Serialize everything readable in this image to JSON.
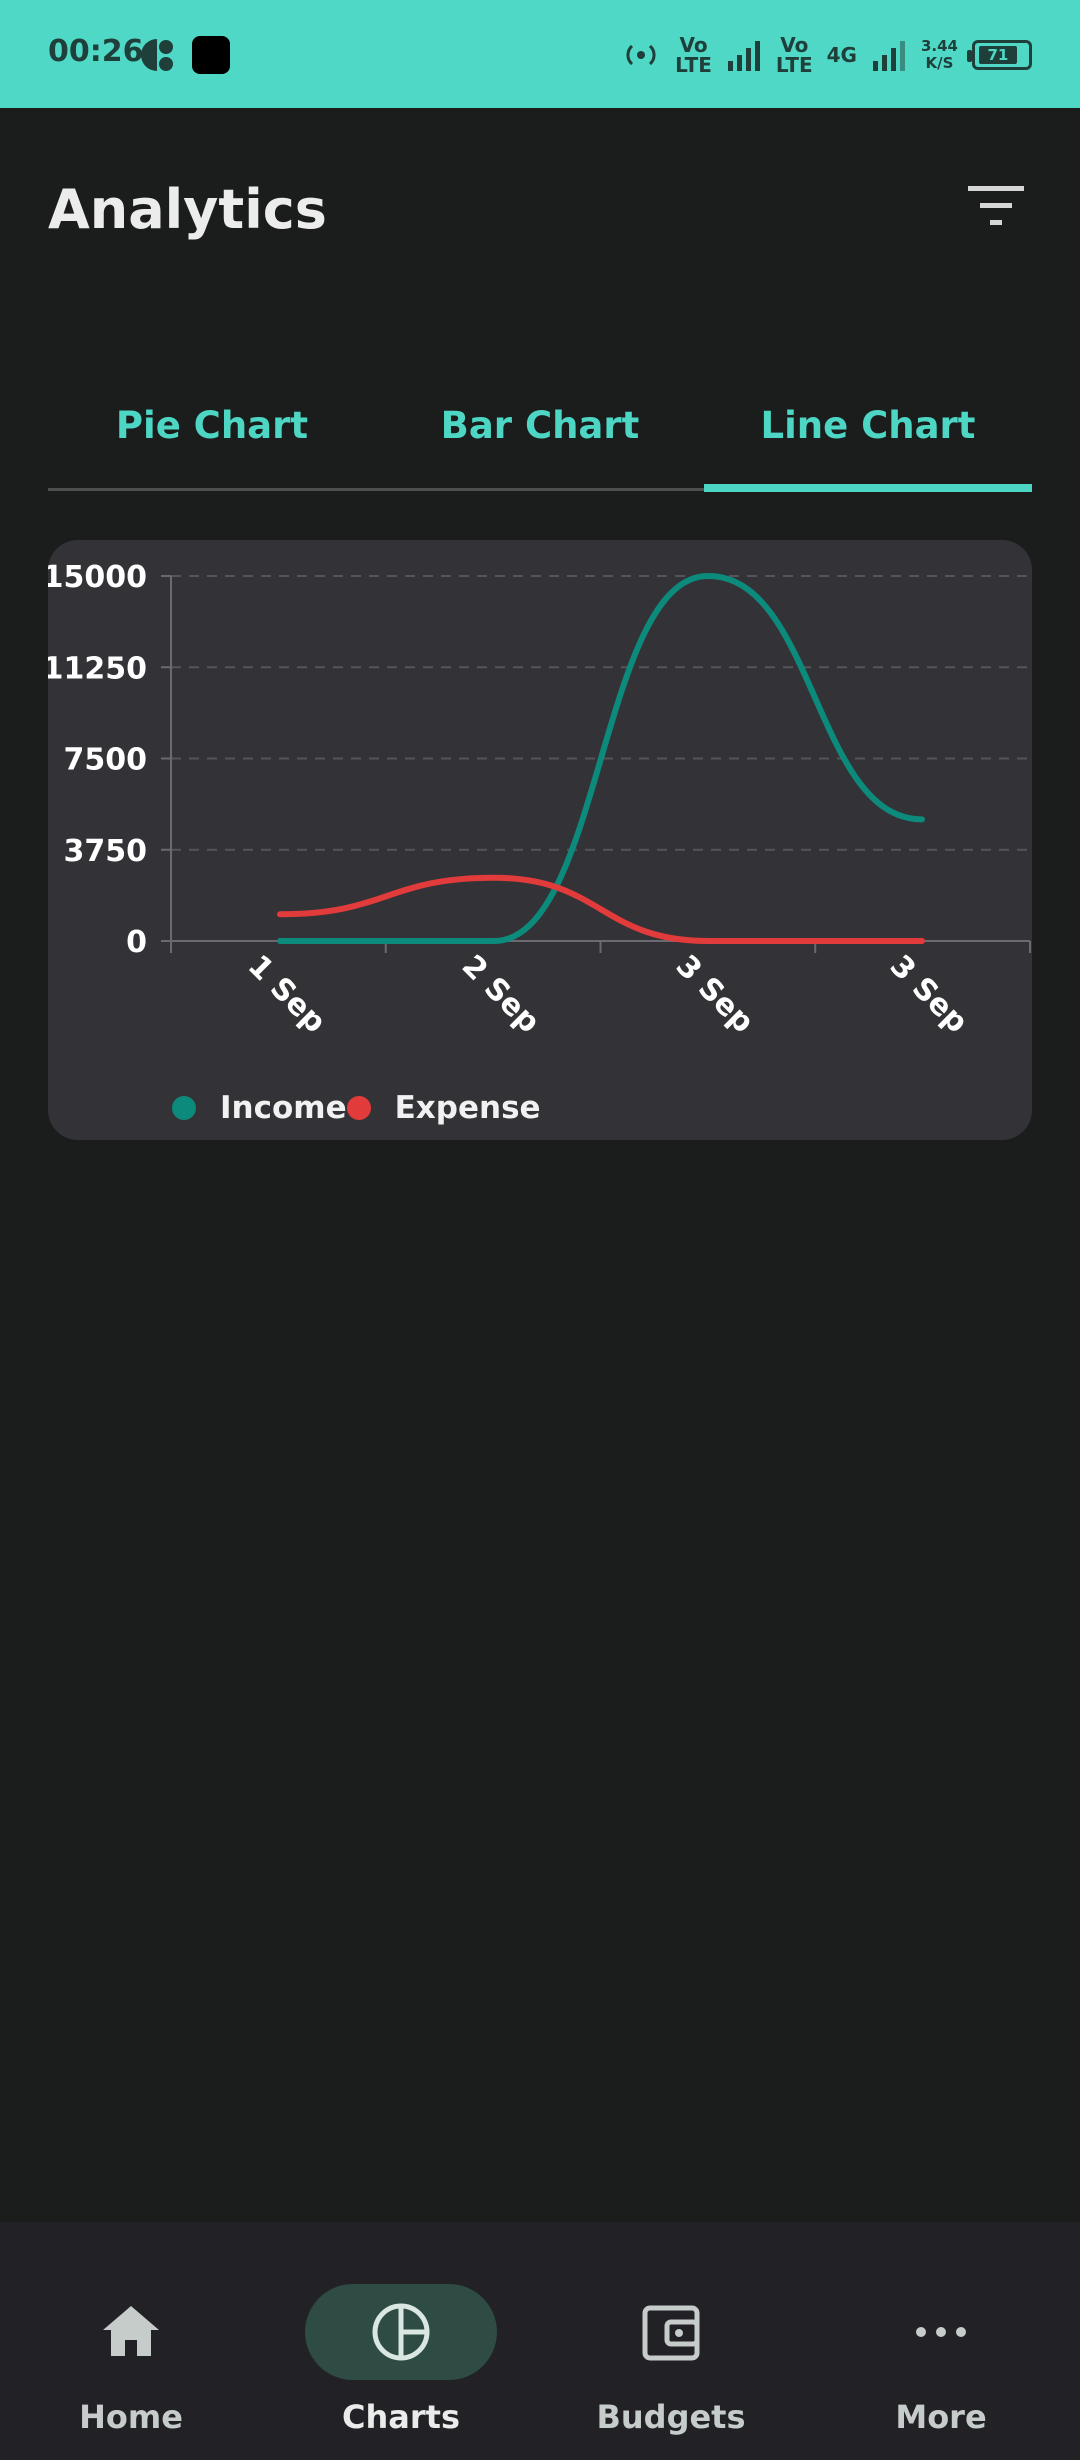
{
  "status_bar": {
    "time": "00:26",
    "net_label_1": "Vo\nLTE",
    "net_label_2": "Vo\nLTE",
    "net_4g": "4G",
    "speed": "3.44\nK/S",
    "battery": "71",
    "color": "#50d8c6"
  },
  "header": {
    "title": "Analytics",
    "filter_icon": "filter-icon"
  },
  "tabs": [
    {
      "label": "Pie Chart"
    },
    {
      "label": "Bar Chart"
    },
    {
      "label": "Line Chart",
      "active": true
    }
  ],
  "chart_data": {
    "type": "line",
    "x": [
      "1 Sep",
      "2 Sep",
      "3 Sep",
      "3 Sep"
    ],
    "y_ticks": [
      "15000",
      "11250",
      "7500",
      "3750",
      "0"
    ],
    "ylim": [
      0,
      15000
    ],
    "grid": true,
    "series": [
      {
        "name": "Income",
        "color": "#0c8a7b",
        "values": [
          0,
          0,
          15000,
          5000
        ]
      },
      {
        "name": "Expense",
        "color": "#e23b3b",
        "values": [
          1100,
          2600,
          0,
          0
        ]
      }
    ],
    "legend_position": "bottom-left"
  },
  "bottom_nav": [
    {
      "label": "Home",
      "icon": "home-icon"
    },
    {
      "label": "Charts",
      "icon": "chart-icon",
      "active": true
    },
    {
      "label": "Budgets",
      "icon": "wallet-icon"
    },
    {
      "label": "More",
      "icon": "more-icon"
    }
  ]
}
